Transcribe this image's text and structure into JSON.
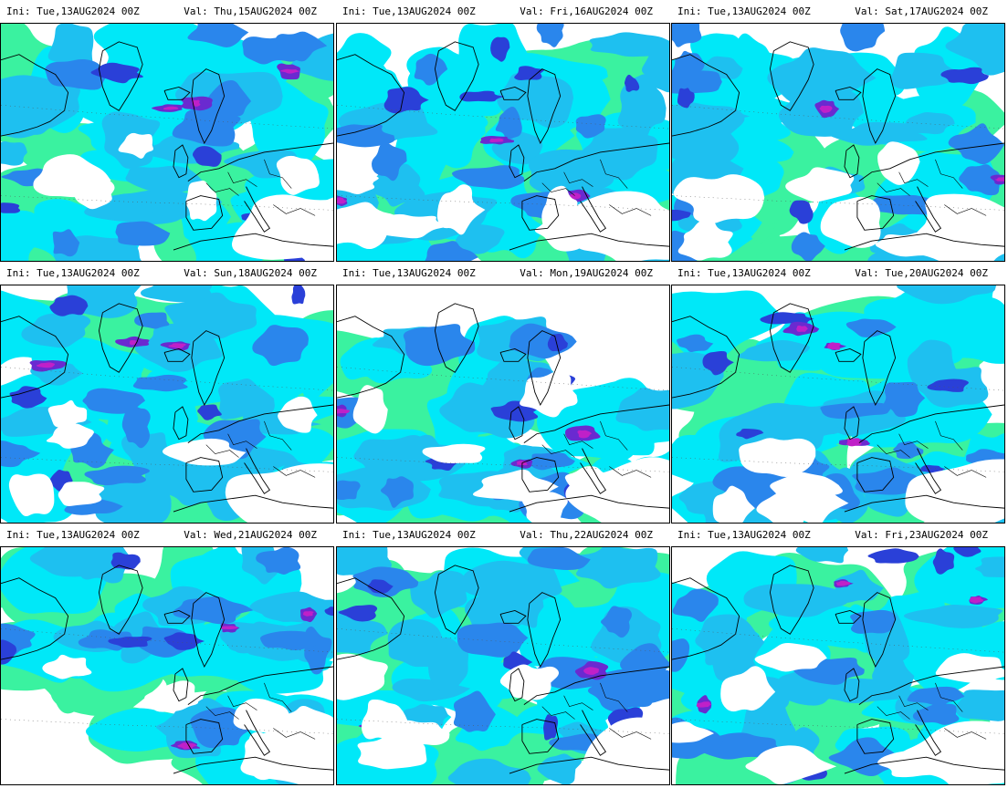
{
  "panels": [
    {
      "ini": "Ini: Tue,13AUG2024 00Z",
      "val": "Val: Thu,15AUG2024 00Z",
      "seed": 11
    },
    {
      "ini": "Ini: Tue,13AUG2024 00Z",
      "val": "Val: Fri,16AUG2024 00Z",
      "seed": 23
    },
    {
      "ini": "Ini: Tue,13AUG2024 00Z",
      "val": "Val: Sat,17AUG2024 00Z",
      "seed": 37
    },
    {
      "ini": "Ini: Tue,13AUG2024 00Z",
      "val": "Val: Sun,18AUG2024 00Z",
      "seed": 41
    },
    {
      "ini": "Ini: Tue,13AUG2024 00Z",
      "val": "Val: Mon,19AUG2024 00Z",
      "seed": 53
    },
    {
      "ini": "Ini: Tue,13AUG2024 00Z",
      "val": "Val: Tue,20AUG2024 00Z",
      "seed": 67
    },
    {
      "ini": "Ini: Tue,13AUG2024 00Z",
      "val": "Val: Wed,21AUG2024 00Z",
      "seed": 71
    },
    {
      "ini": "Ini: Tue,13AUG2024 00Z",
      "val": "Val: Thu,22AUG2024 00Z",
      "seed": 83
    },
    {
      "ini": "Ini: Tue,13AUG2024 00Z",
      "val": "Val: Fri,23AUG2024 00Z",
      "seed": 97
    }
  ],
  "colors": {
    "green": "#3af2a0",
    "cyan": "#00e8f8",
    "sky": "#1ec0f0",
    "blue": "#2a86ec",
    "deep_blue": "#2a40d8",
    "violet": "#6a2ad0",
    "magenta": "#c020c8",
    "land_line": "#000000"
  }
}
